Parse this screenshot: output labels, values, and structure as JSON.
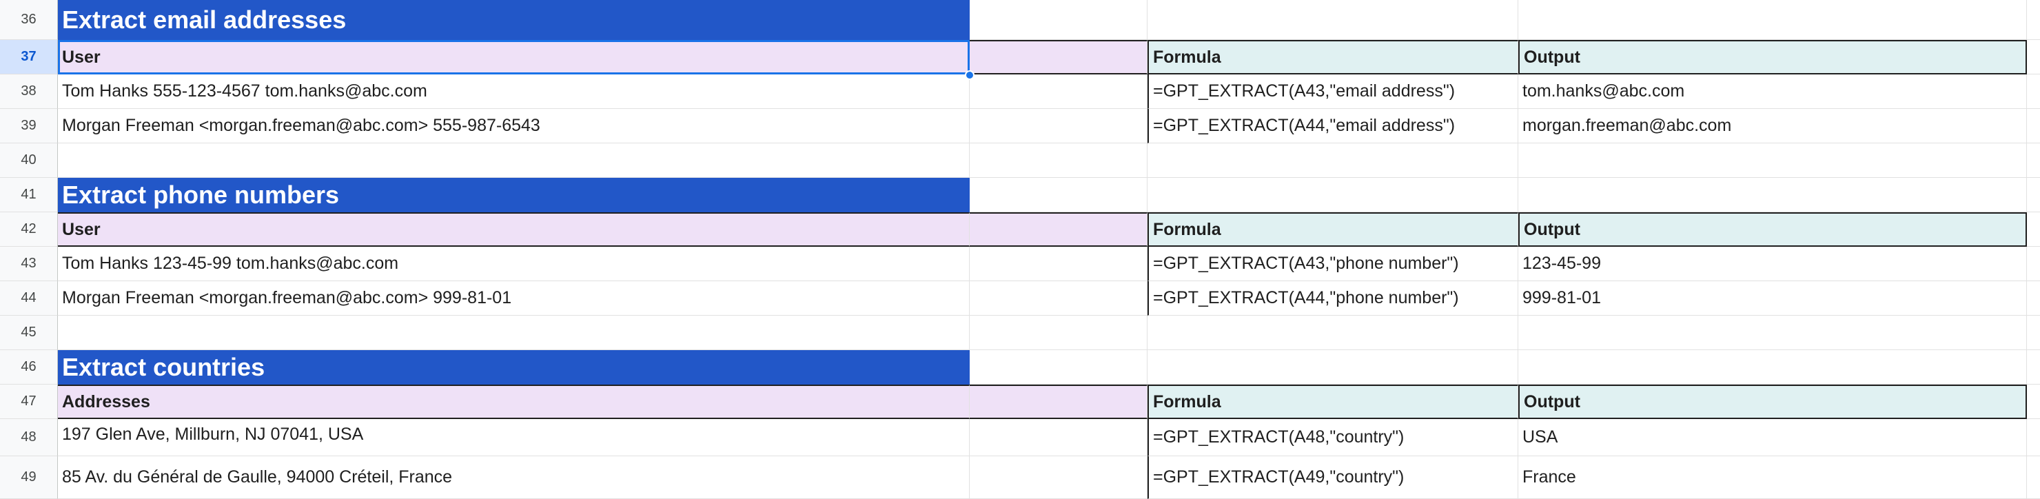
{
  "rows": {
    "r36": {
      "num": "36",
      "a": "Extract email addresses"
    },
    "r37": {
      "num": "37",
      "a": "User",
      "c": "Formula",
      "d": "Output"
    },
    "r38": {
      "num": "38",
      "a": "Tom Hanks 555-123-4567 tom.hanks@abc.com",
      "c": "=GPT_EXTRACT(A43,\"email address\")",
      "d": "tom.hanks@abc.com"
    },
    "r39": {
      "num": "39",
      "a": "Morgan Freeman <morgan.freeman@abc.com> 555-987-6543",
      "c": "=GPT_EXTRACT(A44,\"email address\")",
      "d": "morgan.freeman@abc.com"
    },
    "r40": {
      "num": "40"
    },
    "r41": {
      "num": "41",
      "a": "Extract phone numbers"
    },
    "r42": {
      "num": "42",
      "a": "User",
      "c": "Formula",
      "d": "Output"
    },
    "r43": {
      "num": "43",
      "a": "Tom Hanks 123-45-99 tom.hanks@abc.com",
      "c": "=GPT_EXTRACT(A43,\"phone number\")",
      "d": "123-45-99"
    },
    "r44": {
      "num": "44",
      "a": "Morgan Freeman <morgan.freeman@abc.com> 999-81-01",
      "c": "=GPT_EXTRACT(A44,\"phone number\")",
      "d": "999-81-01"
    },
    "r45": {
      "num": "45"
    },
    "r46": {
      "num": "46",
      "a": "Extract countries"
    },
    "r47": {
      "num": "47",
      "a": "Addresses",
      "c": "Formula",
      "d": "Output"
    },
    "r48": {
      "num": "48",
      "a": "197 Glen Ave, Millburn, NJ 07041, USA",
      "c": "=GPT_EXTRACT(A48,\"country\")",
      "d": "USA"
    },
    "r49": {
      "num": "49",
      "a": "85 Av. du Général de Gaulle, 94000 Créteil, France",
      "c": "=GPT_EXTRACT(A49,\"country\")",
      "d": "France"
    }
  },
  "active_row": "37",
  "colors": {
    "section_title_bg": "#2257c8",
    "user_header_bg": "#efe1f7",
    "output_header_bg": "#e0f1f2",
    "selection": "#1a73e8"
  }
}
